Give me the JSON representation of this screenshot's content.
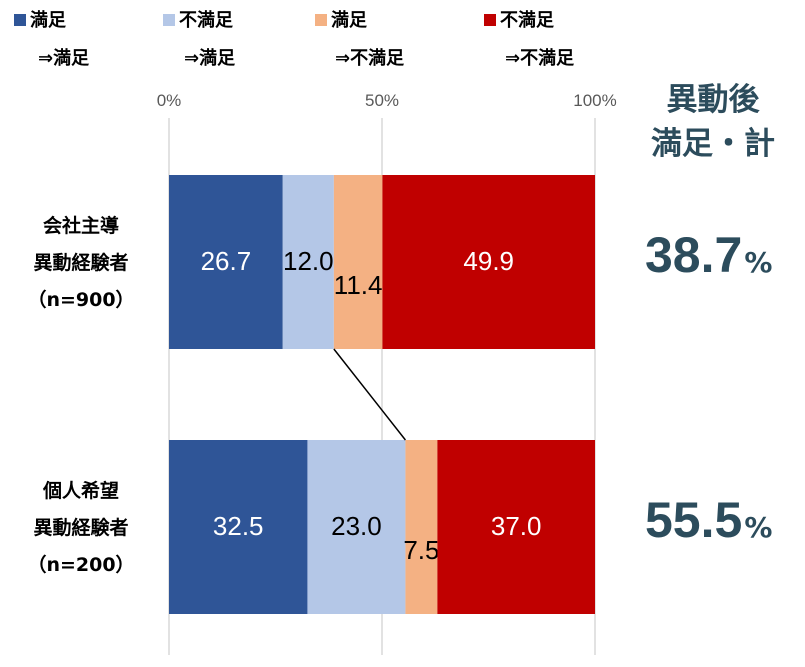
{
  "legend": [
    {
      "line1": "満足",
      "line2": "⇒満足",
      "color": "#2f5597"
    },
    {
      "line1": "不満足",
      "line2": "⇒満足",
      "color": "#b4c7e7"
    },
    {
      "line1": "満足",
      "line2": "⇒不満足",
      "color": "#f4b183"
    },
    {
      "line1": "不満足",
      "line2": "⇒不満足",
      "color": "#c00000"
    }
  ],
  "totals_header": {
    "line1": "異動後",
    "line2": "満足・計"
  },
  "totals": [
    {
      "value": "38.7",
      "unit": "%"
    },
    {
      "value": "55.5",
      "unit": "%"
    }
  ],
  "category_labels": [
    {
      "line1": "会社主導",
      "line2": "異動経験者",
      "line3": "（n=900）"
    },
    {
      "line1": "個人希望",
      "line2": "異動経験者",
      "line3": "（n=200）"
    }
  ],
  "colors": {
    "total_text": "#2c4c5c",
    "gridline": "#d9d9d9",
    "connector": "#000000"
  },
  "chart_data": {
    "type": "bar",
    "orientation": "horizontal",
    "stacked": true,
    "categories": [
      "会社主導異動経験者（n=900）",
      "個人希望異動経験者（n=200）"
    ],
    "xlim": [
      0,
      100
    ],
    "ticks": [
      "0%",
      "50%",
      "100%"
    ],
    "grid": true,
    "legend_position": "top",
    "series": [
      {
        "name": "満足⇒満足",
        "color": "#2f5597",
        "label_color": "#ffffff",
        "values": [
          26.7,
          32.5
        ]
      },
      {
        "name": "不満足⇒満足",
        "color": "#b4c7e7",
        "label_color": "#000000",
        "values": [
          12.0,
          23.0
        ]
      },
      {
        "name": "満足⇒不満足",
        "color": "#f4b183",
        "label_color": "#000000",
        "values": [
          11.4,
          7.5
        ]
      },
      {
        "name": "不満足⇒不満足",
        "color": "#c00000",
        "label_color": "#ffffff",
        "values": [
          49.9,
          37.0
        ]
      }
    ],
    "series_lines": true
  }
}
